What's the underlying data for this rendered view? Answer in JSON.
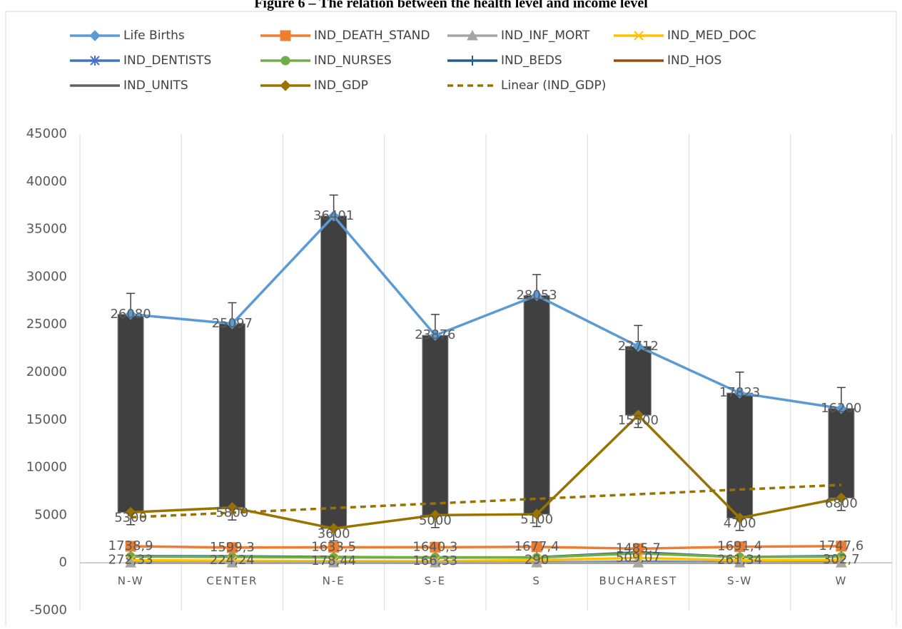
{
  "chart_data": {
    "type": "line",
    "title": "Figure 6 – The relation between the health level and income level",
    "categories": [
      "N-W",
      "CENTER",
      "N-E",
      "S-E",
      "S",
      "BUCHAREST",
      "S-W",
      "W"
    ],
    "ylim": [
      -5000,
      45000
    ],
    "yticks": [
      -5000,
      0,
      5000,
      10000,
      15000,
      20000,
      25000,
      30000,
      35000,
      40000,
      45000
    ],
    "grid": "vertical",
    "legend": "top",
    "high_low_bars": {
      "color": "#404040"
    },
    "series": [
      {
        "name": "Life Births",
        "color": "#5b9bd5",
        "marker": "diamond",
        "values": [
          26080,
          25097,
          36401,
          23876,
          28053,
          22712,
          17823,
          16200
        ],
        "error_plus": 2200
      },
      {
        "name": "IND_DEATH_STAND",
        "color": "#ed7d31",
        "marker": "square",
        "values": [
          1738.9,
          1599.3,
          1633.5,
          1640.3,
          1677.4,
          1485.7,
          1691.4,
          1747.6
        ],
        "value_labels": [
          "1738,9",
          "1599,3",
          "1633,5",
          "1640,3",
          "1677,4",
          "1485,7",
          "1691,4",
          "1747,6"
        ]
      },
      {
        "name": "IND_INF_MORT",
        "color": "#a5a5a5",
        "marker": "triangle",
        "values": [
          10,
          9,
          11,
          12,
          11,
          6,
          10,
          9
        ]
      },
      {
        "name": "IND_MED_DOC",
        "color": "#ffc000",
        "marker": "x",
        "values": [
          272.33,
          224.24,
          178.44,
          166.33,
          290,
          509.07,
          261.34,
          302.7
        ],
        "value_labels": [
          "272,33",
          "224,24",
          "178,44",
          "166,33",
          "290",
          "509,07",
          "261,34",
          "302,7"
        ]
      },
      {
        "name": "IND_DENTISTS",
        "color": "#4472c4",
        "marker": "star",
        "values": [
          50,
          45,
          40,
          35,
          30,
          125,
          45,
          55
        ]
      },
      {
        "name": "IND_NURSES",
        "color": "#70ad47",
        "marker": "circle",
        "values": [
          650,
          620,
          560,
          580,
          550,
          1000,
          600,
          650
        ]
      },
      {
        "name": "IND_BEDS",
        "color": "#255e91",
        "marker": "plus",
        "values": [
          700,
          680,
          600,
          550,
          580,
          1100,
          600,
          720
        ]
      },
      {
        "name": "IND_HOS",
        "color": "#9e480e",
        "marker": "none",
        "values": [
          60,
          55,
          50,
          45,
          50,
          40,
          55,
          60
        ]
      },
      {
        "name": "IND_UNITS",
        "color": "#636363",
        "marker": "none",
        "values": [
          10,
          10,
          9,
          9,
          8,
          12,
          9,
          10
        ]
      },
      {
        "name": "IND_GDP",
        "color": "#997300",
        "marker": "diamond",
        "values": [
          5300,
          5800,
          3600,
          5000,
          5100,
          15500,
          4700,
          6800
        ],
        "error_minus": 1300
      },
      {
        "name": "Linear (IND_GDP)",
        "color": "#997300",
        "marker": "none",
        "dash": true,
        "values": [
          4775,
          5261,
          5746,
          6232,
          6718,
          7204,
          7689,
          8175
        ]
      }
    ]
  }
}
